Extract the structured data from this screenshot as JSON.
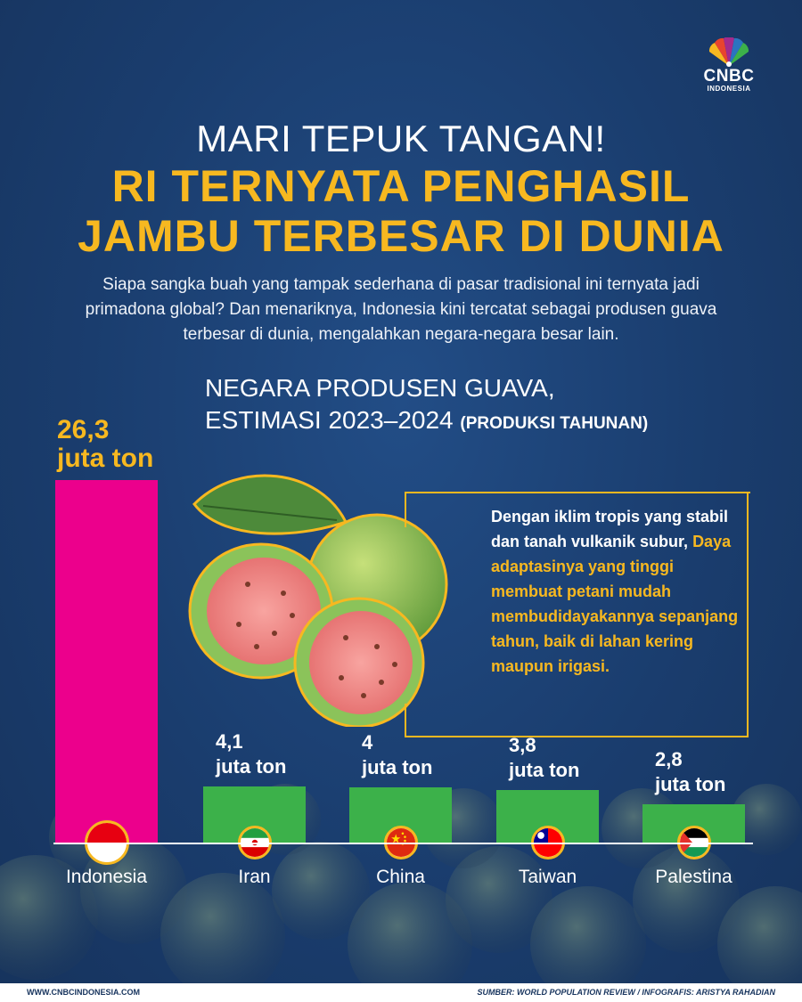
{
  "brand": {
    "name": "CNBC",
    "sub": "INDONESIA"
  },
  "headline": {
    "line1": "MARI TEPUK TANGAN!",
    "line2": "RI TERNYATA PENGHASIL",
    "line3": "JAMBU TERBESAR DI DUNIA"
  },
  "intro": "Siapa sangka buah yang tampak sederhana di pasar tradisional ini ternyata jadi primadona global? Dan menariknya, Indonesia kini tercatat sebagai produsen guava terbesar di dunia, mengalahkan negara-negara besar lain.",
  "callout": {
    "text_plain": "Dengan iklim tropis yang stabil dan tanah vulkanik subur, ",
    "text_highlight": "Daya adaptasinya yang tinggi membuat petani mudah membudidayakannya sepanjang tahun, baik di lahan kering maupun irigasi."
  },
  "colors": {
    "accent": "#f7b820",
    "highlight_bar": "#ec008c",
    "bar": "#3cb14a",
    "background": "#1a3d6e"
  },
  "chart_data": {
    "type": "bar",
    "title_line1": "NEGARA PRODUSEN GUAVA,",
    "title_line2": "ESTIMASI 2023–2024",
    "title_suffix": "(PRODUKSI TAHUNAN)",
    "unit": "juta ton",
    "categories": [
      "Indonesia",
      "Iran",
      "China",
      "Taiwan",
      "Palestina"
    ],
    "values": [
      26.3,
      4.1,
      4,
      3.8,
      2.8
    ],
    "value_labels": [
      "26,3",
      "4,1",
      "4",
      "3,8",
      "2,8"
    ],
    "ylim": [
      0,
      26.3
    ]
  },
  "footer": {
    "site": "WWW.CNBCINDONESIA.COM",
    "source_label": "SUMBER: ",
    "source": "WORLD POPULATION REVIEW",
    "sep": " / INFOGRAFIS: ",
    "author": "ARISTYA RAHADIAN"
  }
}
